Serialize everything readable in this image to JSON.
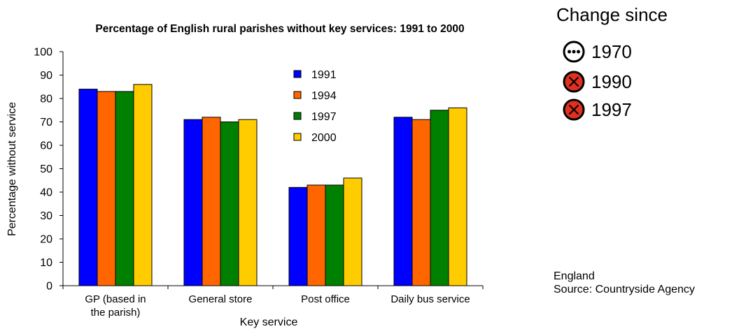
{
  "chart_data": {
    "type": "bar",
    "title": "Percentage of English rural parishes without key services: 1991 to 2000",
    "xlabel": "Key service",
    "ylabel": "Percentage without service",
    "ylim": [
      0,
      100
    ],
    "yticks": [
      0,
      10,
      20,
      30,
      40,
      50,
      60,
      70,
      80,
      90,
      100
    ],
    "categories": [
      "GP (based in the parish)",
      "General store",
      "Post office",
      "Daily bus service"
    ],
    "category_label_lines": [
      [
        "GP (based in",
        "the parish)"
      ],
      [
        "General store"
      ],
      [
        "Post office"
      ],
      [
        "Daily bus service"
      ]
    ],
    "series": [
      {
        "name": "1991",
        "color": "#0000ff",
        "values": [
          84,
          71,
          42,
          72
        ]
      },
      {
        "name": "1994",
        "color": "#ff6600",
        "values": [
          83,
          72,
          43,
          71
        ]
      },
      {
        "name": "1997",
        "color": "#008000",
        "values": [
          83,
          70,
          43,
          75
        ]
      },
      {
        "name": "2000",
        "color": "#ffcc00",
        "values": [
          86,
          71,
          46,
          76
        ]
      }
    ],
    "grid": false,
    "legend_position": "inside-top-center"
  },
  "change_panel": {
    "title": "Change since",
    "items": [
      {
        "label": "1970",
        "status": "little-or-no-change",
        "icon": "ellipsis-circle-icon",
        "color": "#ffffff"
      },
      {
        "label": "1990",
        "status": "deterioration",
        "icon": "cross-circle-icon",
        "color": "#e03020"
      },
      {
        "label": "1997",
        "status": "deterioration",
        "icon": "cross-circle-icon",
        "color": "#e03020"
      }
    ]
  },
  "notes": {
    "region": "England",
    "source": "Source: Countryside Agency"
  }
}
